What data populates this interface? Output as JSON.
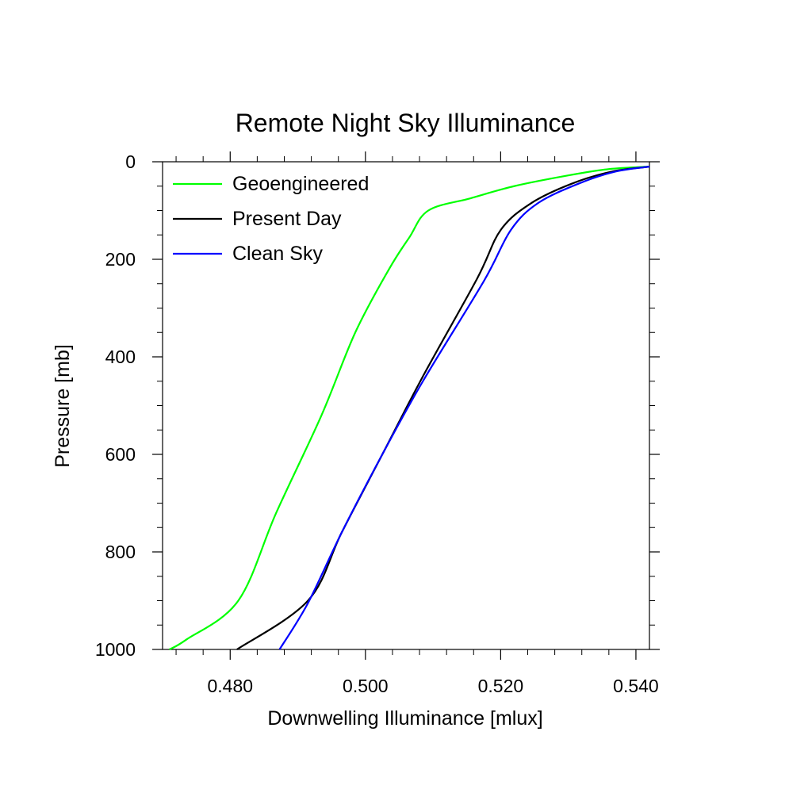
{
  "chart_data": {
    "type": "line",
    "title": "Remote Night Sky Illuminance",
    "xlabel": "Downwelling Illuminance [mlux]",
    "ylabel": "Pressure [mb]",
    "xlim": [
      0.47,
      0.542
    ],
    "ylim": [
      1000,
      0
    ],
    "y_inverted": true,
    "x_ticks": [
      "0.480",
      "0.500",
      "0.520",
      "0.540"
    ],
    "y_ticks": [
      "0",
      "200",
      "400",
      "600",
      "800",
      "1000"
    ],
    "legend_position": "top-left",
    "grid": false,
    "series": [
      {
        "name": "Geoengineered",
        "color": "#00ff00",
        "points": [
          [
            0.471,
            1000
          ],
          [
            0.4735,
            980
          ],
          [
            0.4812,
            900
          ],
          [
            0.4868,
            720
          ],
          [
            0.4935,
            520
          ],
          [
            0.4985,
            350
          ],
          [
            0.5035,
            220
          ],
          [
            0.5065,
            155
          ],
          [
            0.5093,
            100
          ],
          [
            0.5155,
            75
          ],
          [
            0.522,
            50
          ],
          [
            0.53,
            28
          ],
          [
            0.536,
            15
          ],
          [
            0.542,
            10
          ]
        ]
      },
      {
        "name": "Present Day",
        "color": "#000000",
        "points": [
          [
            0.481,
            1000
          ],
          [
            0.4915,
            900
          ],
          [
            0.4965,
            760
          ],
          [
            0.5025,
            600
          ],
          [
            0.5085,
            440
          ],
          [
            0.5165,
            240
          ],
          [
            0.52,
            140
          ],
          [
            0.5245,
            85
          ],
          [
            0.5305,
            45
          ],
          [
            0.5365,
            20
          ],
          [
            0.542,
            10
          ]
        ]
      },
      {
        "name": "Clean Sky",
        "color": "#0000ff",
        "points": [
          [
            0.4873,
            1000
          ],
          [
            0.4915,
            905
          ],
          [
            0.4965,
            760
          ],
          [
            0.5025,
            600
          ],
          [
            0.5085,
            450
          ],
          [
            0.5175,
            245
          ],
          [
            0.5215,
            140
          ],
          [
            0.5255,
            85
          ],
          [
            0.5315,
            45
          ],
          [
            0.537,
            20
          ],
          [
            0.542,
            10
          ]
        ]
      }
    ]
  }
}
